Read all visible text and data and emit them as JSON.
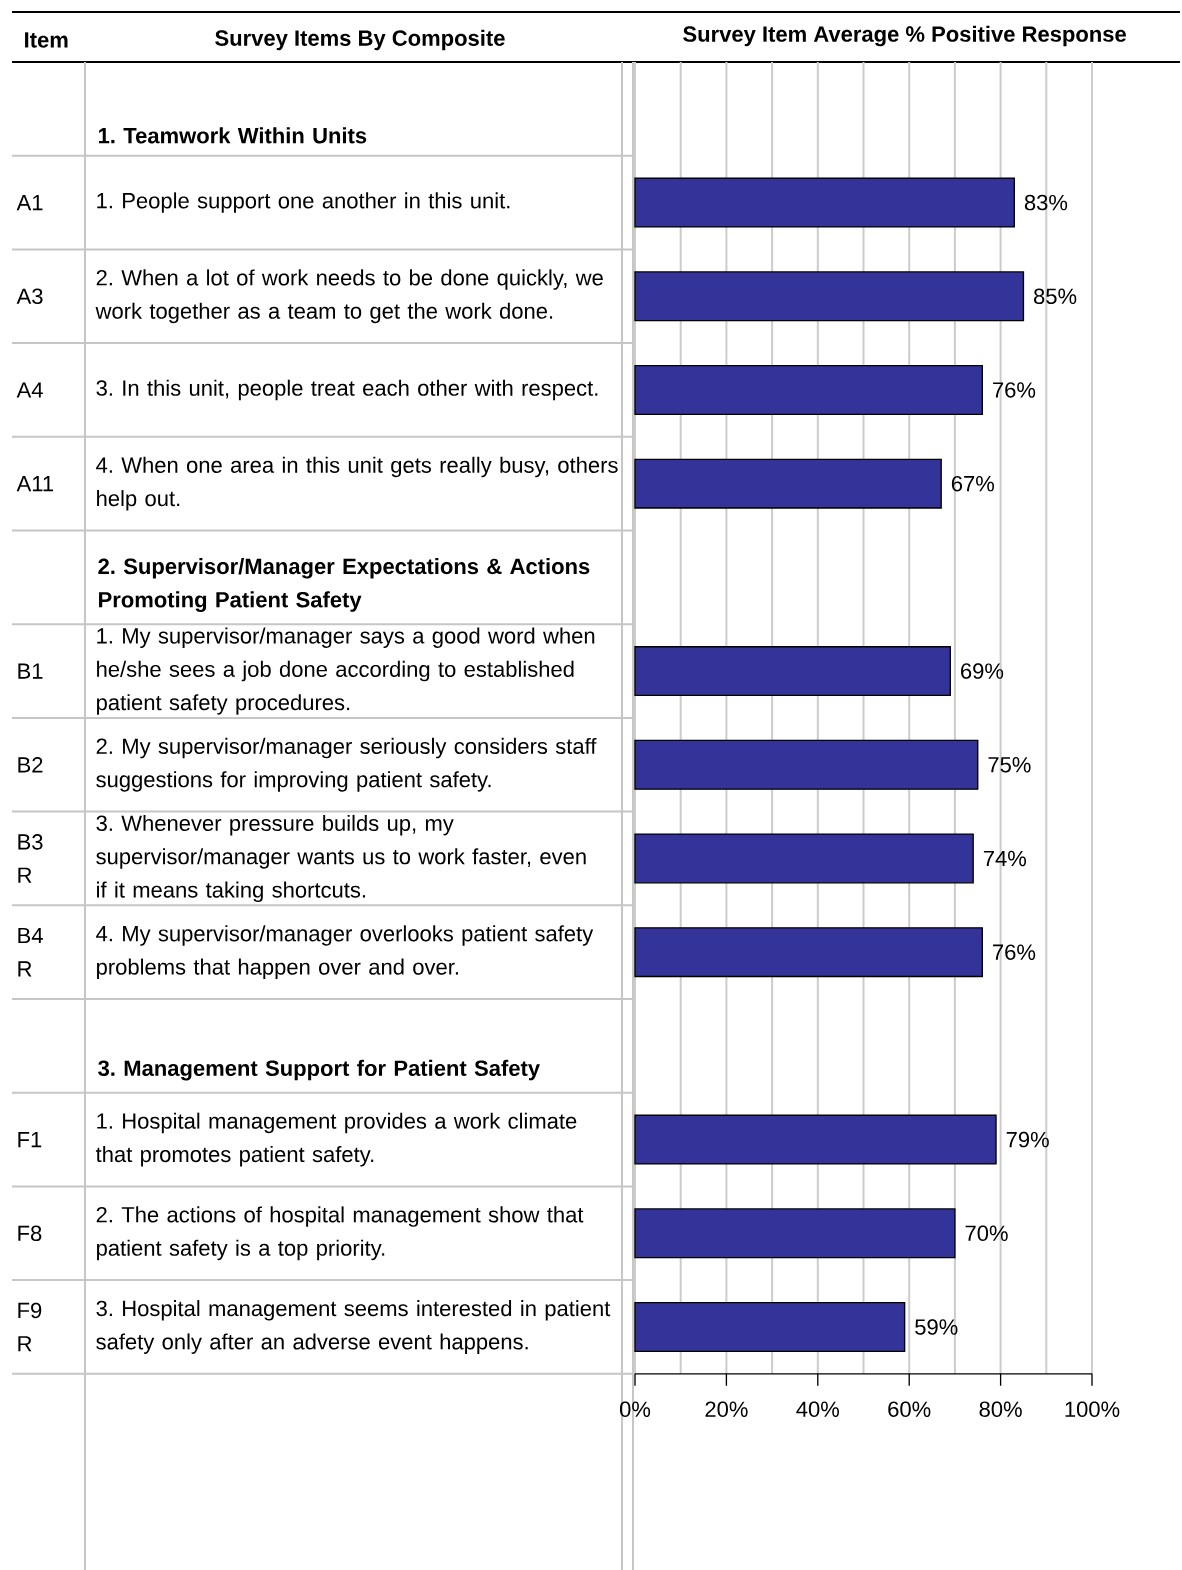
{
  "chart_data": {
    "type": "bar",
    "orientation": "horizontal",
    "title": "Survey Item Average % Positive Response",
    "categories": [
      null,
      "1. People support one another in this unit.",
      "2. When a lot of work needs to be done quickly, we work together as a team to get the work done.",
      "3. In this unit, people treat each other with respect.",
      "4. When one area in this unit gets really busy, others help out.",
      null,
      "1. My supervisor/manager says a good word when he/she sees a job done according to established patient safety procedures.",
      "2. My supervisor/manager seriously considers staff suggestions for improving patient safety.",
      "3. Whenever pressure builds up, my supervisor/manager wants us to work faster, even if it means taking shortcuts.",
      "4. My supervisor/manager overlooks patient safety problems that happen over and over.",
      null,
      "1. Hospital management provides a work climate that promotes patient safety.",
      "2. The actions of hospital management show that patient safety is a top priority.",
      "3. Hospital management seems interested in patient safety only after an adverse event happens."
    ],
    "values": [
      null,
      83,
      85,
      76,
      67,
      null,
      69,
      75,
      74,
      76,
      null,
      79,
      70,
      59
    ],
    "value_labels": [
      null,
      "83%",
      "85%",
      "76%",
      "67%",
      null,
      "69%",
      "75%",
      "74%",
      "76%",
      null,
      "79%",
      "70%",
      "59%"
    ],
    "color": "#333399",
    "xlim": [
      0,
      100
    ],
    "xticks": [
      {
        "value": 0,
        "label": "0%"
      },
      {
        "value": 20,
        "label": "20%"
      },
      {
        "value": 40,
        "label": "40%"
      },
      {
        "value": 60,
        "label": "60%"
      },
      {
        "value": 80,
        "label": "80%"
      },
      {
        "value": 100,
        "label": "100%"
      }
    ],
    "grid": "x",
    "annotations": [
      "Item",
      "Survey Items By Composite",
      "1.  Teamwork Within Units",
      "2.  Supervisor/Manager Expectations & Actions Promoting Patient Safety",
      "3.  Management Support for Patient Safety",
      "A1",
      "A3",
      "A4",
      "A11",
      "B1",
      "B2",
      "B3 R",
      "B4 R",
      "F1",
      "F8",
      "F9 R"
    ]
  }
}
